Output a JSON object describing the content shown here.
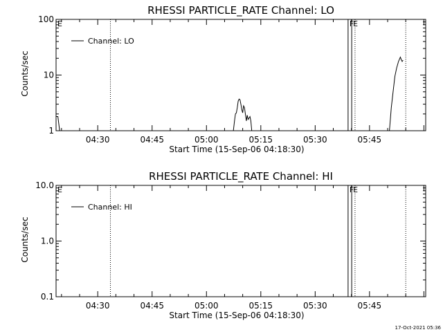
{
  "footer": {
    "timestamp": "17-Oct-2021 05:36"
  },
  "chart_data": [
    {
      "type": "line",
      "title": "RHESSI PARTICLE_RATE Channel: LO",
      "xlabel": "Start Time (15-Sep-06 04:18:30)",
      "ylabel": "Counts/sec",
      "y_scale": "log",
      "ylim": [
        1,
        100
      ],
      "xlim": [
        "04:18:30",
        "06:00:30"
      ],
      "y_ticks": [
        {
          "value": 1,
          "label": "1"
        },
        {
          "value": 10,
          "label": "10"
        },
        {
          "value": 100,
          "label": "100"
        }
      ],
      "x_ticks": [
        {
          "value": "04:30",
          "label": "04:30"
        },
        {
          "value": "04:45",
          "label": "04:45"
        },
        {
          "value": "05:00",
          "label": "05:00"
        },
        {
          "value": "05:15",
          "label": "05:15"
        },
        {
          "value": "05:30",
          "label": "05:30"
        },
        {
          "value": "05:45",
          "label": "05:45"
        }
      ],
      "legend": {
        "placement": "top-left"
      },
      "series": [
        {
          "name": "Channel: LO",
          "segments": [
            [
              [
                "04:18:30",
                1.8
              ],
              [
                "04:19:00",
                1.8
              ],
              [
                "04:19:30",
                1.0
              ],
              [
                "04:19:50",
                0.8
              ]
            ],
            [
              [
                "05:07:20",
                0.9
              ],
              [
                "05:07:45",
                1.5
              ],
              [
                "05:08:00",
                2.0
              ],
              [
                "05:08:15",
                2.1
              ],
              [
                "05:08:30",
                2.6
              ],
              [
                "05:08:45",
                3.4
              ],
              [
                "05:09:00",
                3.7
              ],
              [
                "05:09:15",
                3.6
              ],
              [
                "05:09:30",
                3.0
              ],
              [
                "05:09:45",
                2.4
              ],
              [
                "05:10:00",
                2.1
              ],
              [
                "05:10:15",
                2.8
              ],
              [
                "05:10:30",
                2.6
              ],
              [
                "05:10:45",
                2.0
              ],
              [
                "05:11:00",
                1.5
              ],
              [
                "05:11:15",
                1.9
              ],
              [
                "05:11:30",
                1.6
              ],
              [
                "05:12:00",
                1.8
              ],
              [
                "05:12:15",
                1.5
              ],
              [
                "05:12:30",
                1.0
              ],
              [
                "05:12:45",
                0.8
              ]
            ],
            [
              [
                "05:50:15",
                0.8
              ],
              [
                "05:50:30",
                1.0
              ],
              [
                "05:51:00",
                2.6
              ],
              [
                "05:51:30",
                5.0
              ],
              [
                "05:52:00",
                9.5
              ],
              [
                "05:52:30",
                13.5
              ],
              [
                "05:53:00",
                17.5
              ],
              [
                "05:53:30",
                21.0
              ],
              [
                "05:53:45",
                19.0
              ],
              [
                "05:54:00",
                17.5
              ],
              [
                "05:54:15",
                18.5
              ]
            ]
          ]
        }
      ],
      "annotations": [
        {
          "kind": "line",
          "style": "dotted",
          "x": "04:33:30"
        },
        {
          "kind": "line",
          "style": "solid",
          "x": "05:39:05"
        },
        {
          "kind": "line",
          "style": "solid",
          "x": "05:40:05"
        },
        {
          "kind": "line",
          "style": "dotted",
          "x": "05:41:00"
        },
        {
          "kind": "line",
          "style": "dotted",
          "x": "05:55:00"
        },
        {
          "kind": "label",
          "text": "E",
          "x": "04:18:30"
        },
        {
          "kind": "label",
          "text": "F",
          "x": "05:39:05"
        },
        {
          "kind": "label",
          "text": "E",
          "x": "05:40:05"
        }
      ]
    },
    {
      "type": "line",
      "title": "RHESSI PARTICLE_RATE Channel: HI",
      "xlabel": "Start Time (15-Sep-06 04:18:30)",
      "ylabel": "Counts/sec",
      "y_scale": "log",
      "ylim": [
        0.1,
        10
      ],
      "xlim": [
        "04:18:30",
        "06:00:30"
      ],
      "y_ticks": [
        {
          "value": 0.1,
          "label": "0.1"
        },
        {
          "value": 1,
          "label": "1.0"
        },
        {
          "value": 10,
          "label": "10.0"
        }
      ],
      "x_ticks": [
        {
          "value": "04:30",
          "label": "04:30"
        },
        {
          "value": "04:45",
          "label": "04:45"
        },
        {
          "value": "05:00",
          "label": "05:00"
        },
        {
          "value": "05:15",
          "label": "05:15"
        },
        {
          "value": "05:30",
          "label": "05:30"
        },
        {
          "value": "05:45",
          "label": "05:45"
        }
      ],
      "legend": {
        "placement": "top-left"
      },
      "series": [
        {
          "name": "Channel: HI",
          "segments": []
        }
      ],
      "annotations": [
        {
          "kind": "line",
          "style": "dotted",
          "x": "04:33:30"
        },
        {
          "kind": "line",
          "style": "solid",
          "x": "05:39:05"
        },
        {
          "kind": "line",
          "style": "solid",
          "x": "05:40:05"
        },
        {
          "kind": "line",
          "style": "dotted",
          "x": "05:41:00"
        },
        {
          "kind": "line",
          "style": "dotted",
          "x": "05:55:00"
        },
        {
          "kind": "label",
          "text": "E",
          "x": "04:18:30"
        },
        {
          "kind": "label",
          "text": "F",
          "x": "05:39:05"
        },
        {
          "kind": "label",
          "text": "E",
          "x": "05:40:05"
        }
      ]
    }
  ]
}
